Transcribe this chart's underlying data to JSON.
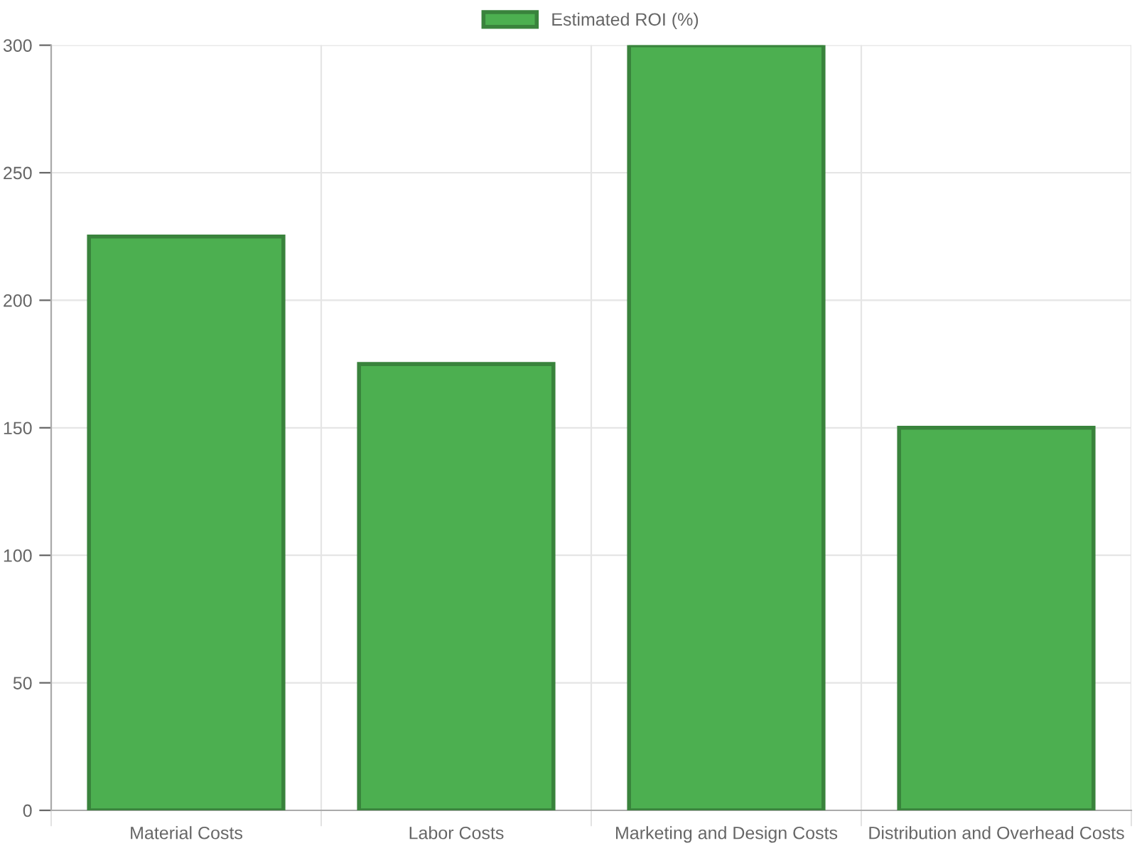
{
  "chart_data": {
    "type": "bar",
    "categories": [
      "Material Costs",
      "Labor Costs",
      "Marketing and Design Costs",
      "Distribution and Overhead Costs"
    ],
    "series": [
      {
        "name": "Estimated ROI (%)",
        "color": "#4caf50",
        "values": [
          225,
          175,
          300,
          150
        ]
      }
    ],
    "ylim": [
      0,
      300
    ],
    "yticks": [
      0,
      50,
      100,
      150,
      200,
      250,
      300
    ],
    "grid": true,
    "legend": "top"
  }
}
